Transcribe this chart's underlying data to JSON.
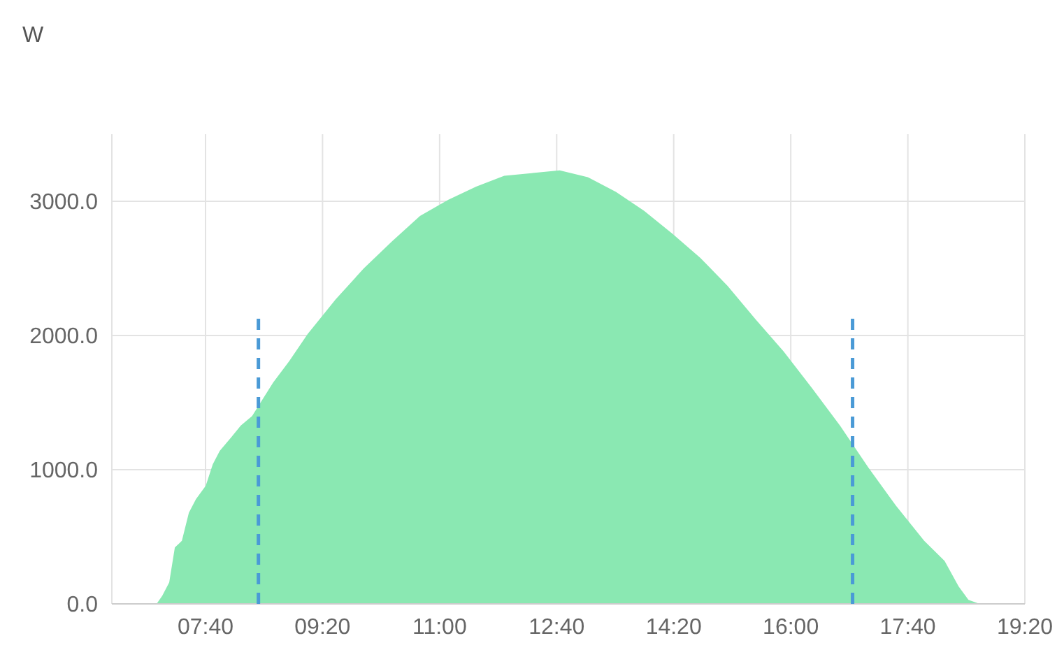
{
  "chart_data": {
    "type": "area",
    "ylabel": "W",
    "x": [
      6.333,
      6.97,
      7.05,
      7.15,
      7.23,
      7.33,
      7.43,
      7.53,
      7.67,
      7.77,
      7.87,
      8.03,
      8.17,
      8.33,
      8.45,
      8.63,
      8.86,
      9.12,
      9.52,
      9.92,
      10.32,
      10.72,
      11.12,
      11.52,
      11.92,
      12.31,
      12.71,
      13.11,
      13.51,
      13.91,
      14.31,
      14.71,
      15.1,
      15.5,
      15.9,
      16.3,
      16.7,
      17.1,
      17.5,
      17.9,
      18.19,
      18.39,
      18.53,
      18.69,
      19.333
    ],
    "values": [
      0,
      0,
      60,
      160,
      420,
      470,
      680,
      780,
      880,
      1040,
      1140,
      1240,
      1330,
      1400,
      1500,
      1650,
      1810,
      2010,
      2270,
      2500,
      2700,
      2890,
      3010,
      3110,
      3190,
      3210,
      3230,
      3180,
      3070,
      2930,
      2760,
      2580,
      2370,
      2120,
      1880,
      1610,
      1330,
      1020,
      730,
      470,
      320,
      130,
      30,
      0,
      0
    ],
    "color": "#8ae8b2",
    "xlim": [
      6.333,
      19.333
    ],
    "xticks": [
      {
        "value": 7.667,
        "label": "07:40"
      },
      {
        "value": 9.333,
        "label": "09:20"
      },
      {
        "value": 11,
        "label": "11:00"
      },
      {
        "value": 12.667,
        "label": "12:40"
      },
      {
        "value": 14.333,
        "label": "14:20"
      },
      {
        "value": 16,
        "label": "16:00"
      },
      {
        "value": 17.667,
        "label": "17:40"
      },
      {
        "value": 19.333,
        "label": "19:20"
      }
    ],
    "ylim": [
      0,
      3500
    ],
    "yticks": [
      {
        "value": 0,
        "label": "0.0"
      },
      {
        "value": 1000,
        "label": "1000.0"
      },
      {
        "value": 2000,
        "label": "2000.0"
      },
      {
        "value": 3000,
        "label": "3000.0"
      }
    ],
    "grid": true,
    "ref_lines": [
      {
        "axis": "x",
        "value": 8.42,
        "color": "#4a9ad6",
        "line_style": "dashed"
      },
      {
        "axis": "x",
        "value": 16.88,
        "color": "#4a9ad6",
        "line_style": "dashed"
      }
    ]
  }
}
